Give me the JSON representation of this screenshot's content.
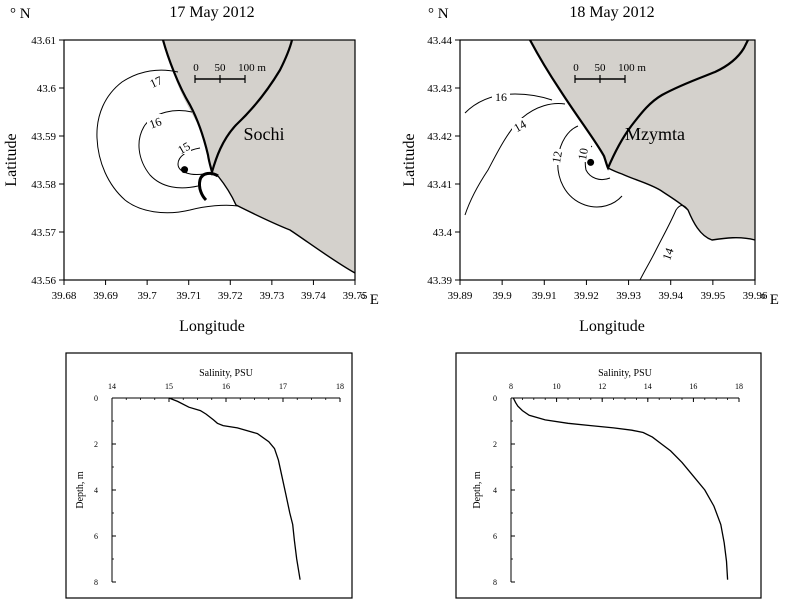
{
  "chart_data": [
    {
      "type": "map",
      "title": "17 May 2012",
      "north_label": "° N",
      "east_label": "° E",
      "xlabel": "Longitude",
      "ylabel": "Latitude",
      "xlim": [
        39.68,
        39.75
      ],
      "ylim": [
        43.56,
        43.61
      ],
      "x_ticks": [
        "39.68",
        "39.69",
        "39.7",
        "39.71",
        "39.72",
        "39.73",
        "39.74",
        "39.75"
      ],
      "y_ticks": [
        "43.61",
        "43.6",
        "43.59",
        "43.58",
        "43.57",
        "43.56"
      ],
      "place_label": "Sochi",
      "scale_bar": {
        "labels": [
          "0",
          "50",
          "100 m"
        ]
      },
      "station": {
        "lon": 39.709,
        "lat": 43.583
      },
      "contour_labels": [
        "17",
        "16",
        "15"
      ],
      "land_color": "#d4d1cc"
    },
    {
      "type": "map",
      "title": "18 May 2012",
      "north_label": "° N",
      "east_label": "° E",
      "xlabel": "Longitude",
      "ylabel": "Latitude",
      "xlim": [
        39.89,
        39.96
      ],
      "ylim": [
        43.39,
        43.44
      ],
      "x_ticks": [
        "39.89",
        "39.9",
        "39.91",
        "39.92",
        "39.93",
        "39.94",
        "39.95",
        "39.96"
      ],
      "y_ticks": [
        "43.44",
        "43.43",
        "43.42",
        "43.41",
        "43.4",
        "43.39"
      ],
      "place_label": "Mzymta",
      "scale_bar": {
        "labels": [
          "0",
          "50",
          "100 m"
        ]
      },
      "station": {
        "lon": 39.921,
        "lat": 43.4145
      },
      "contour_labels": [
        "16",
        "14",
        "12",
        "10",
        "14"
      ],
      "land_color": "#d4d1cc"
    },
    {
      "type": "line",
      "title": "Salinity, PSU",
      "ylabel": "Depth, m",
      "xlim": [
        14,
        18
      ],
      "ylim": [
        0,
        8
      ],
      "x_ticks": [
        "14",
        "15",
        "16",
        "17",
        "18"
      ],
      "y_ticks": [
        "0",
        "2",
        "4",
        "6",
        "8"
      ],
      "series": [
        {
          "x": [
            15.0,
            15.15,
            15.35,
            15.55,
            15.65,
            15.78,
            15.85,
            15.95,
            16.2,
            16.55,
            16.75,
            16.85,
            16.92,
            16.98,
            17.05,
            17.12,
            17.17,
            17.2,
            17.24,
            17.3
          ],
          "y": [
            0.0,
            0.15,
            0.4,
            0.55,
            0.7,
            0.95,
            1.1,
            1.2,
            1.3,
            1.55,
            1.9,
            2.2,
            2.7,
            3.4,
            4.2,
            5.0,
            5.5,
            6.2,
            7.0,
            7.9
          ]
        }
      ]
    },
    {
      "type": "line",
      "title": "Salinity, PSU",
      "ylabel": "Depth, m",
      "xlim": [
        8,
        18
      ],
      "ylim": [
        0,
        8
      ],
      "x_ticks": [
        "8",
        "10",
        "12",
        "14",
        "16",
        "18"
      ],
      "y_ticks": [
        "0",
        "2",
        "4",
        "6",
        "8"
      ],
      "series": [
        {
          "x": [
            8.1,
            8.2,
            8.3,
            8.5,
            8.8,
            9.5,
            10.5,
            11.5,
            12.5,
            13.3,
            13.8,
            14.2,
            14.6,
            15.0,
            15.5,
            16.0,
            16.5,
            16.9,
            17.2,
            17.35,
            17.45,
            17.5
          ],
          "y": [
            0.0,
            0.2,
            0.35,
            0.55,
            0.75,
            0.95,
            1.1,
            1.2,
            1.3,
            1.4,
            1.5,
            1.7,
            2.0,
            2.3,
            2.8,
            3.4,
            4.0,
            4.7,
            5.5,
            6.3,
            7.1,
            7.9
          ]
        }
      ]
    }
  ]
}
